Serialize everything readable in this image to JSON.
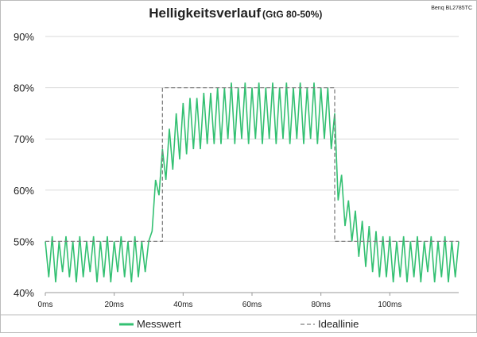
{
  "chart_data": {
    "type": "line",
    "title": "Helligkeitsverlauf",
    "subtitle": "(GtG 80-50%)",
    "annotation": "Benq BL2785TC",
    "xlim": [
      0,
      120
    ],
    "ylim": [
      40,
      90
    ],
    "xticks": [
      {
        "value": 0,
        "label": "0ms"
      },
      {
        "value": 20,
        "label": "20ms"
      },
      {
        "value": 40,
        "label": "40ms"
      },
      {
        "value": 60,
        "label": "60ms"
      },
      {
        "value": 80,
        "label": "80ms"
      },
      {
        "value": 100,
        "label": "100ms"
      }
    ],
    "yticks": [
      {
        "value": 40,
        "label": "40%"
      },
      {
        "value": 50,
        "label": "50%"
      },
      {
        "value": 60,
        "label": "60%"
      },
      {
        "value": 70,
        "label": "70%"
      },
      {
        "value": 80,
        "label": "80%"
      },
      {
        "value": 90,
        "label": "90%"
      }
    ],
    "grid": true,
    "legend": "bottom",
    "series": [
      {
        "name": "Messwert",
        "color": "#33c072",
        "dash": false,
        "x": [
          0,
          1,
          2,
          3,
          4,
          5,
          6,
          7,
          8,
          9,
          10,
          11,
          12,
          13,
          14,
          15,
          16,
          17,
          18,
          19,
          20,
          21,
          22,
          23,
          24,
          25,
          26,
          27,
          28,
          29,
          30,
          31,
          32,
          33,
          34,
          35,
          36,
          37,
          38,
          39,
          40,
          41,
          42,
          43,
          44,
          45,
          46,
          47,
          48,
          49,
          50,
          51,
          52,
          53,
          54,
          55,
          56,
          57,
          58,
          59,
          60,
          61,
          62,
          63,
          64,
          65,
          66,
          67,
          68,
          69,
          70,
          71,
          72,
          73,
          74,
          75,
          76,
          77,
          78,
          79,
          80,
          81,
          82,
          83,
          84,
          85,
          86,
          87,
          88,
          89,
          90,
          91,
          92,
          93,
          94,
          95,
          96,
          97,
          98,
          99,
          100,
          101,
          102,
          103,
          104,
          105,
          106,
          107,
          108,
          109,
          110,
          111,
          112,
          113,
          114,
          115,
          116,
          117,
          118,
          119,
          120
        ],
        "values": [
          50,
          43,
          51,
          42,
          50,
          44,
          51,
          43,
          50,
          42,
          51,
          43,
          50,
          44,
          51,
          42,
          50,
          43,
          51,
          42,
          50,
          44,
          51,
          43,
          50,
          42,
          51,
          43,
          50,
          44,
          50,
          52,
          62,
          59,
          68,
          62,
          72,
          64,
          75,
          66,
          77,
          67,
          78,
          68,
          78,
          68,
          79,
          69,
          79,
          69,
          80,
          69,
          80,
          70,
          81,
          69,
          80,
          70,
          81,
          69,
          80,
          70,
          81,
          69,
          80,
          70,
          81,
          69,
          80,
          70,
          81,
          69,
          80,
          70,
          81,
          69,
          80,
          70,
          81,
          69,
          80,
          70,
          80,
          68,
          75,
          58,
          63,
          53,
          58,
          50,
          56,
          47,
          54,
          45,
          53,
          44,
          52,
          43,
          51,
          43,
          51,
          42,
          50,
          43,
          51,
          42,
          50,
          43,
          51,
          42,
          50,
          44,
          51,
          42,
          50,
          43,
          51,
          42,
          50,
          43,
          50
        ]
      },
      {
        "name": "Ideallinie",
        "color": "#808080",
        "dash": true,
        "x": [
          0,
          34,
          34,
          84,
          84,
          120
        ],
        "values": [
          50,
          50,
          80,
          80,
          50,
          50
        ]
      }
    ]
  }
}
